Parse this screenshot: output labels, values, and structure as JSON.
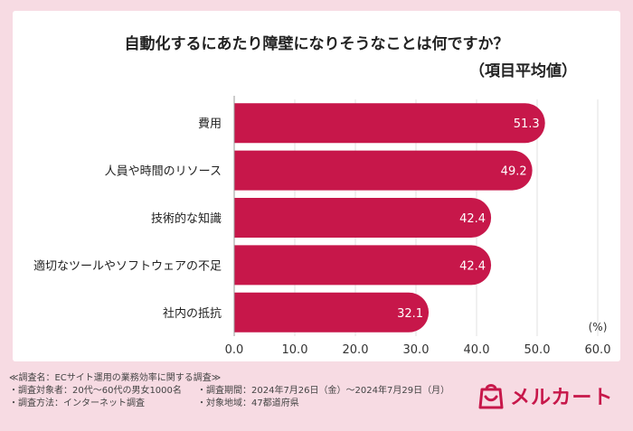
{
  "chart_data": {
    "type": "bar",
    "orientation": "horizontal",
    "title": "自動化するにあたり障壁になりそうなことは何ですか？",
    "subtitle": "（項目平均値）",
    "categories": [
      "費用",
      "人員や時間のリソース",
      "技術的な知識",
      "適切なツールやソフトウェアの不足",
      "社内の抵抗"
    ],
    "values": [
      51.3,
      49.2,
      42.4,
      42.4,
      32.1
    ],
    "data_labels": [
      "51.3",
      "49.2",
      "42.4",
      "42.4",
      "32.1"
    ],
    "xlim": [
      0,
      60
    ],
    "x_ticks": [
      "0.0",
      "10.0",
      "20.0",
      "30.0",
      "40.0",
      "50.0",
      "60.0"
    ],
    "unit": "(%)",
    "bar_color": "#c7174a",
    "grid": true
  },
  "footer": {
    "survey_name": "≪調査名：ECサイト運用の業務効率に関する調査≫",
    "subjects": "・調査対象者：20代〜60代の男女1000名",
    "period": "・調査期間：2024年7月26日（金）〜2024年7月29日（月）",
    "method": "・調査方法：インターネット調査",
    "region": "・対象地域：47都道府県"
  },
  "logo": {
    "text": "メルカート",
    "icon": "cart-bag-icon",
    "color": "#c7174a"
  }
}
